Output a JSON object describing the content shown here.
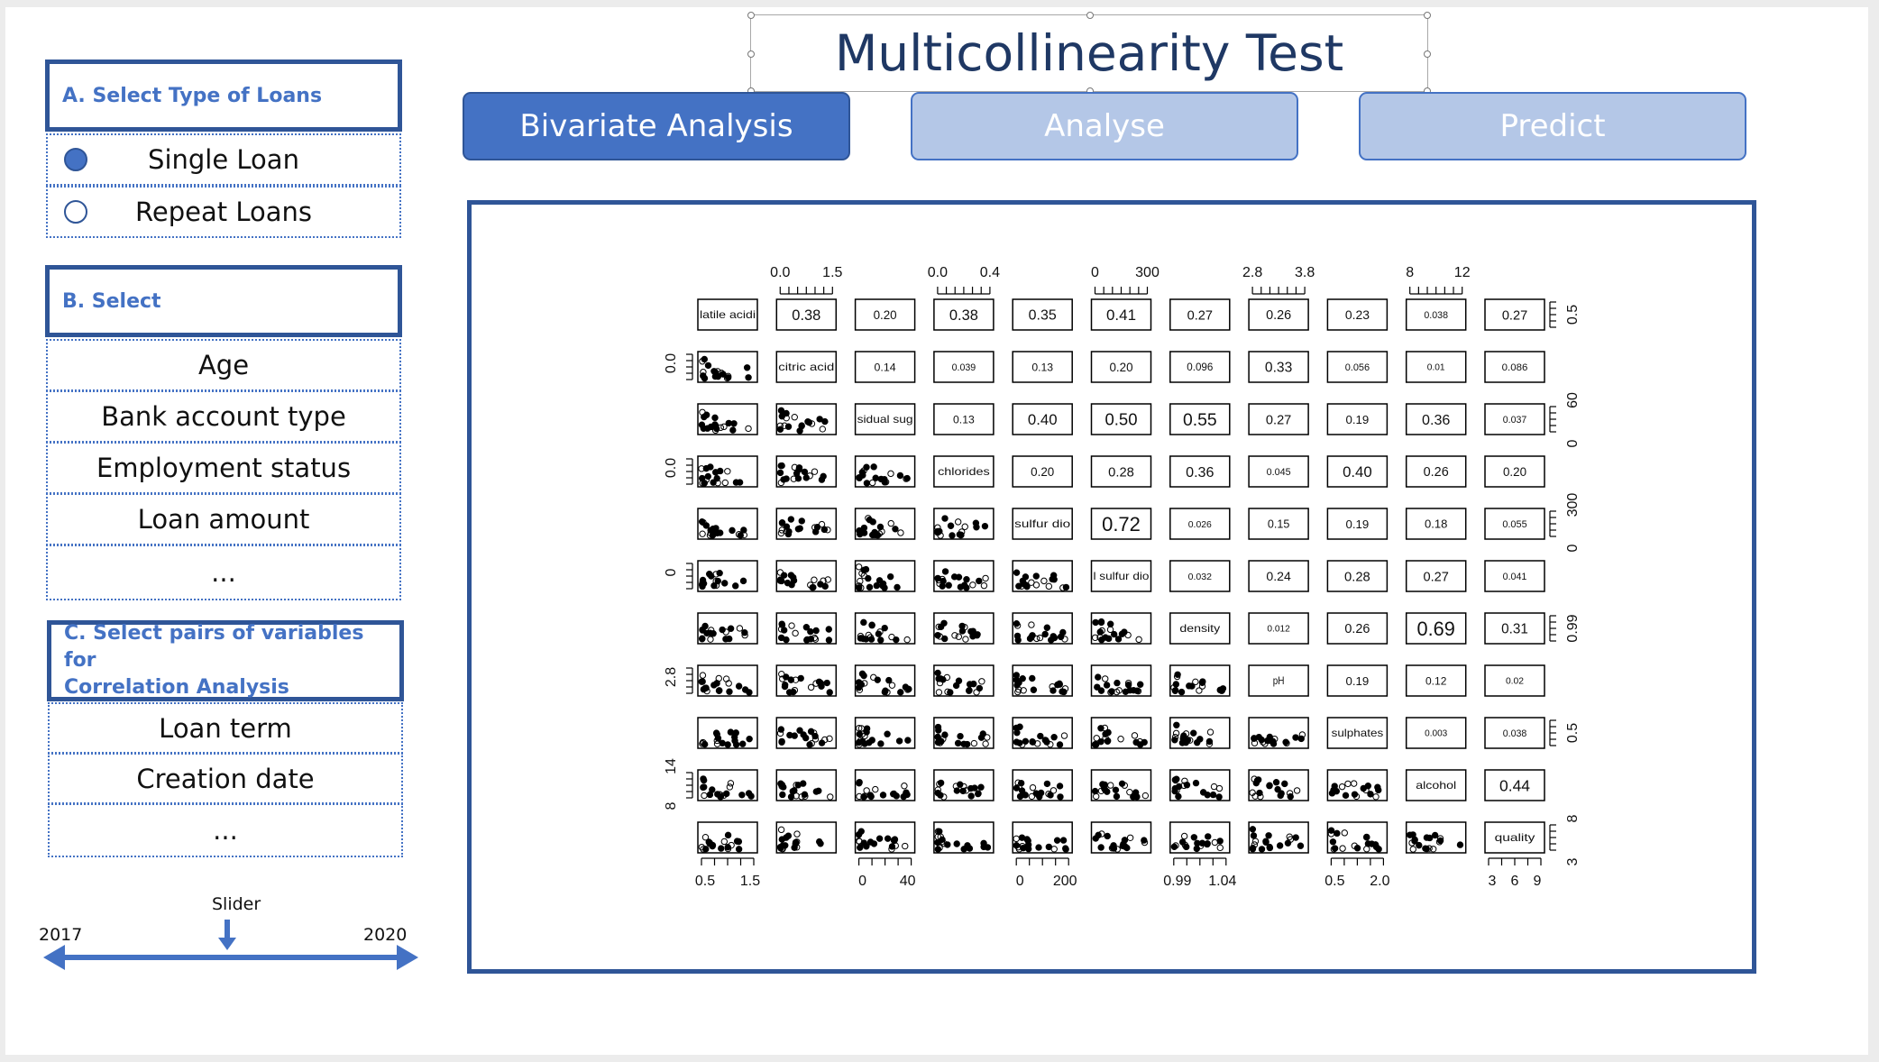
{
  "title": "Multicollinearity Test",
  "tabs": [
    {
      "label": "Bivariate Analysis",
      "active": true
    },
    {
      "label": "Analyse",
      "active": false
    },
    {
      "label": "Predict",
      "active": false
    }
  ],
  "section_a": {
    "header": "A. Select Type of Loans",
    "options": [
      {
        "label": "Single Loan",
        "selected": true
      },
      {
        "label": "Repeat Loans",
        "selected": false
      }
    ]
  },
  "section_b": {
    "header": "B. Select",
    "items": [
      "Age",
      "Bank account type",
      "Employment status",
      "Loan amount",
      "..."
    ]
  },
  "section_c": {
    "header_line1": "C. Select pairs of variables for",
    "header_line2": "Correlation Analysis",
    "items": [
      "Loan term",
      "Creation date",
      "..."
    ]
  },
  "slider": {
    "label": "Slider",
    "min_label": "2017",
    "max_label": "2020",
    "value_fraction": 0.5
  },
  "colors": {
    "accent": "#4472c4",
    "accent_dark": "#2f5597",
    "accent_light": "#b4c7e7",
    "title": "#1f3864"
  },
  "chart_data": {
    "type": "scatter-matrix",
    "variables": [
      "volatile acidity",
      "citric acid",
      "residual sugar",
      "chlorides",
      "free sulfur dioxide",
      "total sulfur dioxide",
      "density",
      "pH",
      "sulphates",
      "alcohol",
      "quality"
    ],
    "diag_labels": [
      "latile acidi",
      "citric acid",
      "sidual sug",
      "chlorides",
      "sulfur dio",
      "l sulfur dio",
      "density",
      "pH",
      "sulphates",
      "alcohol",
      "quality"
    ],
    "correlations": [
      [
        "0.38",
        "0.20",
        "0.38",
        "0.35",
        "0.41",
        "0.27",
        "0.26",
        "0.23",
        "0.038",
        "0.27"
      ],
      [
        "0.14",
        "0.039",
        "0.13",
        "0.20",
        "0.096",
        "0.33",
        "0.056",
        "0.01",
        "0.086"
      ],
      [
        "0.13",
        "0.40",
        "0.50",
        "0.55",
        "0.27",
        "0.19",
        "0.36",
        "0.037"
      ],
      [
        "0.20",
        "0.28",
        "0.36",
        "0.045",
        "0.40",
        "0.26",
        "0.20"
      ],
      [
        "0.72",
        "0.026",
        "0.15",
        "0.19",
        "0.18",
        "0.055"
      ],
      [
        "0.032",
        "0.24",
        "0.28",
        "0.27",
        "0.041"
      ],
      [
        "0.012",
        "0.26",
        "0.69",
        "0.31"
      ],
      [
        "0.19",
        "0.12",
        "0.02"
      ],
      [
        "0.003",
        "0.038"
      ],
      [
        "0.44"
      ]
    ],
    "top_axes": [
      {
        "column": 1,
        "ticks": [
          "0.0",
          "1.5"
        ]
      },
      {
        "column": 3,
        "ticks": [
          "0.0",
          "0.4"
        ]
      },
      {
        "column": 5,
        "ticks": [
          "0",
          "300"
        ]
      },
      {
        "column": 7,
        "ticks": [
          "2.8",
          "3.8"
        ]
      },
      {
        "column": 9,
        "ticks": [
          "8",
          "12"
        ]
      }
    ],
    "bottom_axes": [
      {
        "column": 0,
        "ticks": [
          "0.5",
          "1.5"
        ]
      },
      {
        "column": 2,
        "ticks": [
          "0",
          "40"
        ]
      },
      {
        "column": 4,
        "ticks": [
          "0",
          "200"
        ]
      },
      {
        "column": 6,
        "ticks": [
          "0.99",
          "1.04"
        ]
      },
      {
        "column": 8,
        "ticks": [
          "0.5",
          "2.0"
        ]
      },
      {
        "column": 10,
        "ticks": [
          "3",
          "6",
          "9"
        ]
      }
    ],
    "left_axes": [
      {
        "row": 1,
        "ticks": [
          "0.0"
        ]
      },
      {
        "row": 3,
        "ticks": [
          "0.0"
        ]
      },
      {
        "row": 5,
        "ticks": [
          "0"
        ]
      },
      {
        "row": 7,
        "ticks": [
          "2.8"
        ]
      },
      {
        "row": 9,
        "ticks": [
          "8",
          "14"
        ]
      }
    ],
    "right_axes": [
      {
        "row": 0,
        "ticks": [
          "0.5"
        ]
      },
      {
        "row": 2,
        "ticks": [
          "0",
          "60"
        ]
      },
      {
        "row": 4,
        "ticks": [
          "0",
          "300"
        ]
      },
      {
        "row": 6,
        "ticks": [
          "0.99"
        ]
      },
      {
        "row": 8,
        "ticks": [
          "0.5"
        ]
      },
      {
        "row": 10,
        "ticks": [
          "3",
          "8"
        ]
      }
    ]
  }
}
